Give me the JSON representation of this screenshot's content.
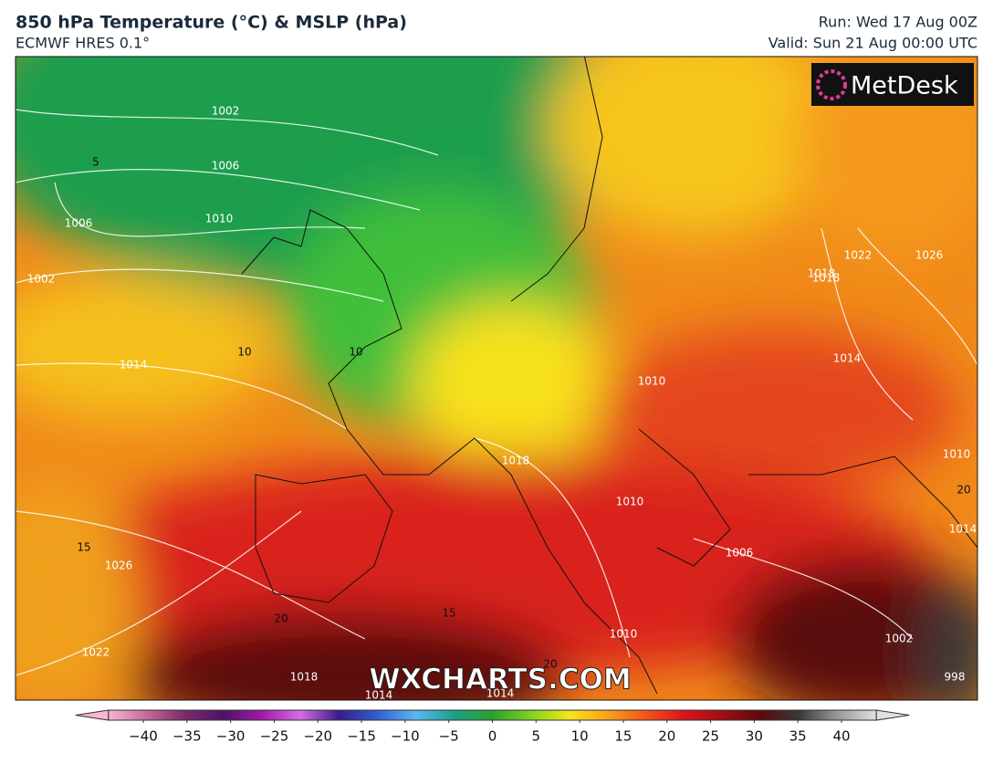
{
  "header": {
    "title": "850 hPa Temperature (°C) & MSLP (hPa)",
    "model": "ECMWF HRES 0.1°",
    "run": "Run: Wed 17 Aug 00Z",
    "valid": "Valid: Sun 21 Aug 00:00 UTC"
  },
  "logo": "MetDesk",
  "watermark": "WXCHARTS.COM",
  "map_labels": [
    "1002",
    "1006",
    "1010",
    "1006",
    "1002",
    "5",
    "1014",
    "10",
    "10",
    "1018",
    "1026",
    "15",
    "1022",
    "15",
    "1018",
    "1014",
    "1010",
    "1014",
    "1018",
    "1022",
    "1026",
    "1010",
    "1006",
    "1010",
    "1002",
    "998",
    "1014",
    "1018",
    "20",
    "20",
    "20",
    "1014",
    "1010"
  ],
  "colorbar": {
    "lim": [
      -44,
      44
    ],
    "colors": [
      "#f7b6d2",
      "#c46a9a",
      "#7a2a6a",
      "#4b1466",
      "#a31aa8",
      "#d36ee0",
      "#3b1c8c",
      "#2f5fd0",
      "#5db7f0",
      "#1aa08a",
      "#2ca02c",
      "#7ed321",
      "#f7e51a",
      "#f7a21a",
      "#f2531a",
      "#d9151a",
      "#9e0d12",
      "#5c0a0a",
      "#3a3a3a",
      "#9a9a9a",
      "#e0e0e0"
    ],
    "ticks": [
      {
        "value": -40,
        "label": "−40"
      },
      {
        "value": -35,
        "label": "−35"
      },
      {
        "value": -30,
        "label": "−30"
      },
      {
        "value": -25,
        "label": "−25"
      },
      {
        "value": -20,
        "label": "−20"
      },
      {
        "value": -15,
        "label": "−15"
      },
      {
        "value": -10,
        "label": "−10"
      },
      {
        "value": -5,
        "label": "−5"
      },
      0,
      5,
      10,
      15,
      20,
      25,
      30,
      35,
      40
    ]
  }
}
